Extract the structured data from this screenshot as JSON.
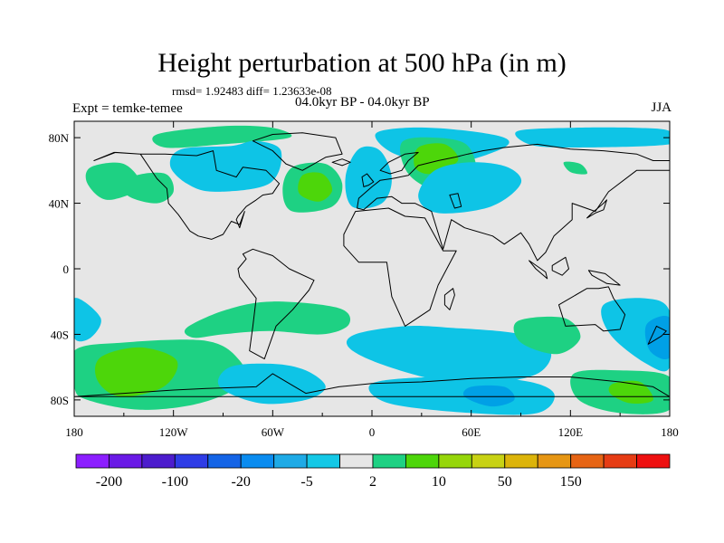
{
  "title": "Height perturbation at 500 hPa (in m)",
  "stats": "rmsd= 1.92483 diff= 1.23633e-08",
  "period": "04.0kyr BP - 04.0kyr BP",
  "experiment": "Expt = temke-temee",
  "season": "JJA",
  "map": {
    "projection": "equirectangular",
    "lon_range": [
      -180,
      180
    ],
    "lat_range": [
      -90,
      90
    ],
    "x_ticks": [
      {
        "lon": -180,
        "label": "180"
      },
      {
        "lon": -120,
        "label": "120W"
      },
      {
        "lon": -60,
        "label": "60W"
      },
      {
        "lon": 0,
        "label": "0"
      },
      {
        "lon": 60,
        "label": "60E"
      },
      {
        "lon": 120,
        "label": "120E"
      },
      {
        "lon": 180,
        "label": "180"
      }
    ],
    "y_ticks": [
      {
        "lat": 80,
        "label": "80N"
      },
      {
        "lat": 40,
        "label": "40N"
      },
      {
        "lat": 0,
        "label": "0"
      },
      {
        "lat": -40,
        "label": "40S"
      },
      {
        "lat": -80,
        "label": "80S"
      }
    ],
    "background_color": "#e6e6e6",
    "coast_color": "#000000"
  },
  "anomaly_regions": [
    {
      "name": "pacific-nw-positive",
      "color": "#1ed183",
      "lon": [
        -170,
        -150,
        -140,
        -160,
        -172
      ],
      "lat": [
        62,
        64,
        50,
        42,
        52
      ]
    },
    {
      "name": "greenland-north-positive",
      "color": "#1ed183",
      "lon": [
        -130,
        -90,
        -60,
        -50,
        -90,
        -125
      ],
      "lat": [
        82,
        87,
        86,
        80,
        76,
        74
      ]
    },
    {
      "name": "canada-arctic-negative",
      "color": "#0ec4e6",
      "lon": [
        -115,
        -85,
        -70,
        -55,
        -62,
        -95,
        -112,
        -122
      ],
      "lat": [
        73,
        75,
        78,
        72,
        52,
        47,
        52,
        63
      ]
    },
    {
      "name": "north-pacific-positive",
      "color": "#1ed183",
      "lon": [
        -145,
        -125,
        -120,
        -130,
        -148
      ],
      "lat": [
        56,
        58,
        47,
        40,
        45
      ]
    },
    {
      "name": "north-atlantic-positive",
      "color": "#1ed183",
      "lon": [
        -48,
        -28,
        -18,
        -24,
        -48,
        -54
      ],
      "lat": [
        62,
        64,
        52,
        38,
        35,
        48
      ]
    },
    {
      "name": "north-atlantic-strong",
      "color": "#4dd60a",
      "lon": [
        -42,
        -30,
        -24,
        -32,
        -44
      ],
      "lat": [
        57,
        58,
        48,
        41,
        46
      ]
    },
    {
      "name": "europe-negative",
      "color": "#0ec4e6",
      "lon": [
        -8,
        5,
        12,
        6,
        -12,
        -16
      ],
      "lat": [
        73,
        72,
        55,
        40,
        38,
        56
      ]
    },
    {
      "name": "scandinavia-negative",
      "color": "#0ec4e6",
      "lon": [
        2,
        20,
        50,
        80,
        78,
        46,
        14
      ],
      "lat": [
        82,
        86,
        85,
        80,
        73,
        64,
        70
      ]
    },
    {
      "name": "scandinavia-positive",
      "color": "#1ed183",
      "lon": [
        18,
        38,
        58,
        62,
        40,
        22
      ],
      "lat": [
        77,
        80,
        75,
        55,
        48,
        58
      ]
    },
    {
      "name": "scandinavia-strong",
      "color": "#4dd60a",
      "lon": [
        28,
        44,
        52,
        36,
        26
      ],
      "lat": [
        74,
        76,
        66,
        58,
        62
      ]
    },
    {
      "name": "central-asia-negative",
      "color": "#0ec4e6",
      "lon": [
        38,
        60,
        82,
        90,
        72,
        40,
        28
      ],
      "lat": [
        60,
        65,
        62,
        52,
        38,
        34,
        44
      ]
    },
    {
      "name": "siberia-negative",
      "color": "#0ec4e6",
      "lon": [
        88,
        120,
        160,
        180,
        180,
        120,
        95
      ],
      "lat": [
        84,
        86,
        86,
        84,
        76,
        74,
        76
      ]
    },
    {
      "name": "east-asia-positive",
      "color": "#1ed183",
      "lon": [
        116,
        126,
        130,
        120
      ],
      "lat": [
        65,
        64,
        58,
        59
      ]
    },
    {
      "name": "south-pacific-positive",
      "color": "#1ed183",
      "lon": [
        -180,
        -150,
        -100,
        -80,
        -78,
        -104,
        -140,
        -172,
        -180
      ],
      "lat": [
        -50,
        -45,
        -44,
        -56,
        -70,
        -82,
        -86,
        -80,
        -72
      ]
    },
    {
      "name": "south-pacific-strong",
      "color": "#4dd60a",
      "lon": [
        -164,
        -140,
        -118,
        -126,
        -152,
        -166
      ],
      "lat": [
        -54,
        -48,
        -56,
        -72,
        -78,
        -68
      ]
    },
    {
      "name": "south-america-positive",
      "color": "#1ed183",
      "lon": [
        -112,
        -88,
        -60,
        -20,
        -14,
        -30,
        -62,
        -90,
        -108
      ],
      "lat": [
        -36,
        -25,
        -20,
        -24,
        -34,
        -40,
        -38,
        -40,
        -42
      ]
    },
    {
      "name": "sw-pacific-negative",
      "color": "#0ec4e6",
      "lon": [
        -180,
        -164,
        -170,
        -180
      ],
      "lat": [
        -18,
        -30,
        -42,
        -42
      ]
    },
    {
      "name": "antarctic-atlantic-negative",
      "color": "#0ec4e6",
      "lon": [
        -86,
        -60,
        -40,
        -28,
        -40,
        -68,
        -92
      ],
      "lat": [
        -60,
        -58,
        -62,
        -72,
        -80,
        -82,
        -72
      ]
    },
    {
      "name": "south-atlantic-negative",
      "color": "#0ec4e6",
      "lon": [
        -10,
        20,
        48,
        90,
        108,
        100,
        70,
        40,
        5,
        -14
      ],
      "lat": [
        -40,
        -35,
        -36,
        -40,
        -50,
        -64,
        -70,
        -68,
        -58,
        -48
      ]
    },
    {
      "name": "indian-ocean-positive",
      "color": "#1ed183",
      "lon": [
        88,
        116,
        126,
        112,
        90
      ],
      "lat": [
        -32,
        -30,
        -42,
        -52,
        -45
      ]
    },
    {
      "name": "east-antarctic-negative",
      "color": "#0ec4e6",
      "lon": [
        0,
        40,
        90,
        110,
        100,
        60,
        10
      ],
      "lat": [
        -70,
        -66,
        -68,
        -76,
        -88,
        -88,
        -82
      ]
    },
    {
      "name": "east-antarctic-strong",
      "color": "#00a0e6",
      "lon": [
        60,
        80,
        86,
        72,
        56
      ],
      "lat": [
        -72,
        -72,
        -80,
        -84,
        -78
      ]
    },
    {
      "name": "ross-sea-positive",
      "color": "#1ed183",
      "lon": [
        122,
        150,
        180,
        180,
        150,
        125
      ],
      "lat": [
        -64,
        -62,
        -66,
        -86,
        -88,
        -80
      ]
    },
    {
      "name": "ross-sea-strong",
      "color": "#4dd60a",
      "lon": [
        146,
        162,
        170,
        156,
        144
      ],
      "lat": [
        -70,
        -69,
        -80,
        -82,
        -76
      ]
    },
    {
      "name": "tasman-negative",
      "color": "#0ec4e6",
      "lon": [
        140,
        165,
        180,
        180,
        166,
        144
      ],
      "lat": [
        -22,
        -18,
        -26,
        -60,
        -58,
        -40
      ]
    },
    {
      "name": "tasman-strong",
      "color": "#00a0e6",
      "lon": [
        166,
        180,
        180,
        168
      ],
      "lat": [
        -34,
        -30,
        -54,
        -50
      ]
    }
  ],
  "coastlines": [
    {
      "name": "north-america",
      "lon": [
        -168,
        -155,
        -140,
        -130,
        -124,
        -123,
        -117,
        -110,
        -105,
        -97,
        -90,
        -85,
        -80,
        -77,
        -80,
        -82,
        -81,
        -76,
        -70,
        -66,
        -60,
        -56,
        -64,
        -78,
        -82,
        -94,
        -96,
        -106,
        -125,
        -140,
        -156,
        -168
      ],
      "lat": [
        66,
        71,
        70,
        55,
        49,
        40,
        33,
        23,
        20,
        18,
        21,
        29,
        27,
        35,
        25,
        30,
        32,
        38,
        42,
        45,
        46,
        52,
        60,
        62,
        56,
        60,
        72,
        69,
        70,
        70,
        71,
        66
      ]
    },
    {
      "name": "greenland",
      "lon": [
        -72,
        -60,
        -42,
        -22,
        -18,
        -28,
        -42,
        -52,
        -60
      ],
      "lat": [
        78,
        82,
        83,
        80,
        70,
        68,
        60,
        64,
        72
      ]
    },
    {
      "name": "south-america",
      "lon": [
        -78,
        -72,
        -60,
        -50,
        -35,
        -38,
        -48,
        -58,
        -65,
        -74,
        -72,
        -70,
        -80,
        -81,
        -76,
        -78
      ],
      "lat": [
        9,
        12,
        8,
        0,
        -7,
        -13,
        -25,
        -35,
        -55,
        -50,
        -35,
        -18,
        -5,
        0,
        6,
        9
      ]
    },
    {
      "name": "africa",
      "lon": [
        -17,
        -10,
        10,
        20,
        32,
        43,
        51,
        40,
        35,
        20,
        12,
        9,
        -8,
        -17
      ],
      "lat": [
        21,
        35,
        37,
        32,
        31,
        11,
        11,
        -10,
        -25,
        -35,
        -17,
        4,
        4,
        14
      ]
    },
    {
      "name": "eurasia",
      "lon": [
        -9,
        -8,
        0,
        5,
        12,
        22,
        28,
        40,
        50,
        58,
        67,
        80,
        100,
        120,
        140,
        160,
        170,
        180,
        180,
        160,
        143,
        135,
        121,
        121,
        110,
        105,
        100,
        95,
        90,
        80,
        73,
        56,
        48,
        43,
        36,
        26,
        18,
        12,
        3,
        -5,
        -9
      ],
      "lat": [
        37,
        43,
        50,
        54,
        55,
        57,
        63,
        66,
        68,
        70,
        72,
        74,
        76,
        73,
        72,
        70,
        66,
        66,
        60,
        60,
        47,
        35,
        40,
        30,
        20,
        10,
        5,
        15,
        22,
        15,
        20,
        25,
        30,
        12,
        35,
        40,
        40,
        44,
        43,
        36,
        37
      ]
    },
    {
      "name": "scandinavia",
      "lon": [
        5,
        10,
        20,
        28,
        22,
        18,
        11,
        5
      ],
      "lat": [
        60,
        65,
        70,
        71,
        66,
        60,
        58,
        60
      ]
    },
    {
      "name": "australia",
      "lon": [
        113,
        130,
        137,
        143,
        146,
        153,
        150,
        140,
        135,
        117,
        113
      ],
      "lat": [
        -22,
        -12,
        -12,
        -11,
        -18,
        -28,
        -37,
        -38,
        -34,
        -35,
        -22
      ]
    },
    {
      "name": "antarctica",
      "lon": [
        -180,
        -150,
        -120,
        -100,
        -70,
        -60,
        -40,
        -20,
        0,
        30,
        60,
        90,
        120,
        150,
        170,
        180
      ],
      "lat": [
        -78,
        -76,
        -74,
        -73,
        -72,
        -64,
        -76,
        -72,
        -70,
        -69,
        -67,
        -66,
        -66,
        -69,
        -72,
        -78
      ]
    },
    {
      "name": "british-isles",
      "lon": [
        -5,
        -2,
        1,
        -3,
        -6,
        -5
      ],
      "lat": [
        50,
        51,
        53,
        58,
        56,
        50
      ]
    },
    {
      "name": "madagascar",
      "lon": [
        44,
        49,
        50,
        47,
        44
      ],
      "lat": [
        -16,
        -12,
        -16,
        -25,
        -22
      ]
    },
    {
      "name": "japan",
      "lon": [
        130,
        135,
        140,
        142,
        140,
        133,
        130
      ],
      "lat": [
        31,
        34,
        36,
        42,
        40,
        34,
        31
      ]
    },
    {
      "name": "new-zealand",
      "lon": [
        172,
        178,
        175,
        167,
        172
      ],
      "lat": [
        -35,
        -38,
        -41,
        -46,
        -35
      ]
    },
    {
      "name": "indonesia-borneo",
      "lon": [
        109,
        117,
        119,
        115,
        109
      ],
      "lat": [
        2,
        7,
        0,
        -4,
        -1
      ]
    },
    {
      "name": "sumatra",
      "lon": [
        95,
        105,
        106,
        99,
        95
      ],
      "lat": [
        5,
        -2,
        -6,
        0,
        5
      ]
    },
    {
      "name": "new-guinea",
      "lon": [
        131,
        141,
        150,
        142,
        133,
        131
      ],
      "lat": [
        -1,
        -3,
        -10,
        -9,
        -4,
        -1
      ]
    },
    {
      "name": "iceland",
      "lon": [
        -24,
        -18,
        -13,
        -18,
        -24
      ],
      "lat": [
        65,
        67,
        65,
        63,
        65
      ]
    },
    {
      "name": "caspian-sea",
      "lon": [
        47,
        52,
        54,
        50,
        47
      ],
      "lat": [
        45,
        46,
        38,
        37,
        45
      ]
    }
  ],
  "colorbar": {
    "colors": [
      "#8c1eff",
      "#6a1ae6",
      "#4c1ccd",
      "#2e3ce6",
      "#1464e6",
      "#0a8cf0",
      "#1eaae6",
      "#14c8e6",
      "#e6e6e6",
      "#1ed183",
      "#4dd60a",
      "#96d60a",
      "#c8d214",
      "#dcb40a",
      "#e69614",
      "#e66414",
      "#e63c14",
      "#ee1010"
    ],
    "labels": [
      {
        "after_box": 1,
        "text": "-200"
      },
      {
        "after_box": 3,
        "text": "-100"
      },
      {
        "after_box": 5,
        "text": "-20"
      },
      {
        "after_box": 7,
        "text": "-5"
      },
      {
        "after_box": 9,
        "text": "2"
      },
      {
        "after_box": 11,
        "text": "10"
      },
      {
        "after_box": 13,
        "text": "50"
      },
      {
        "after_box": 15,
        "text": "150"
      }
    ]
  }
}
